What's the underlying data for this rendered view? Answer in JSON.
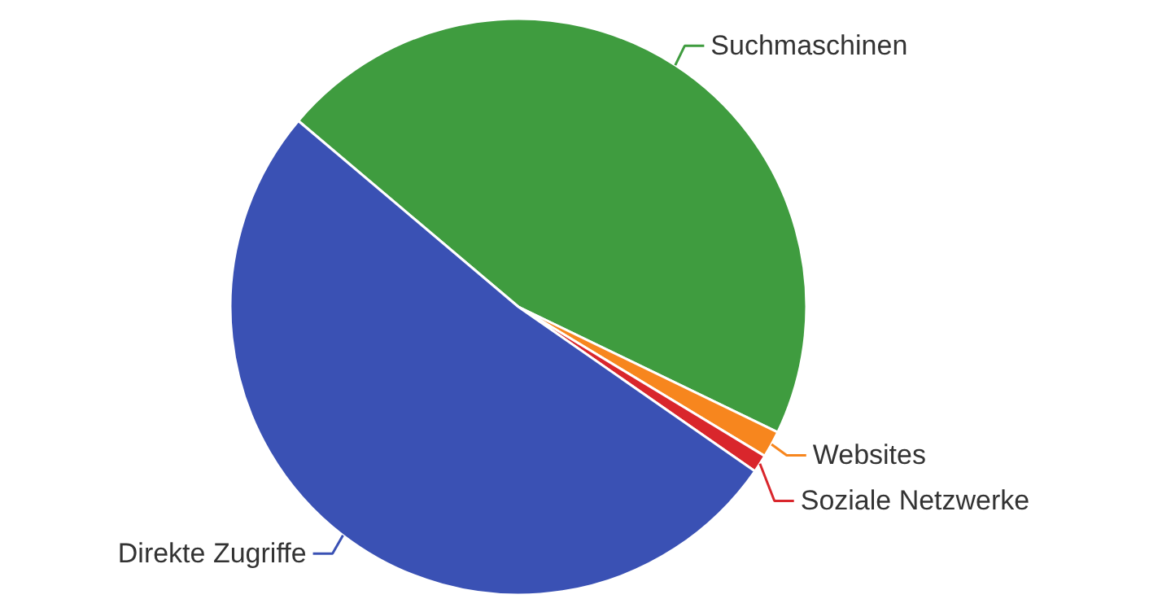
{
  "chart_data": {
    "type": "pie",
    "categories": [
      "Suchmaschinen",
      "Websites",
      "Soziale Netzwerke",
      "Direkte Zugriffe"
    ],
    "values": [
      46,
      1.5,
      1,
      51.5
    ],
    "colors": [
      "#3f9c3f",
      "#f7861e",
      "#d9262c",
      "#3a51b4"
    ]
  }
}
